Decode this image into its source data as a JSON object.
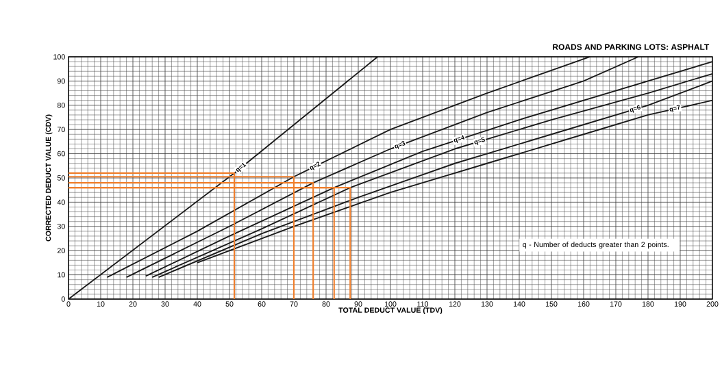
{
  "chart_data": {
    "type": "line",
    "title": "ROADS AND PARKING LOTS:  ASPHALT",
    "xlabel": "TOTAL DEDUCT VALUE (TDV)",
    "ylabel": "CORRECTED DEDUCT VALUE (CDV)",
    "xlim": [
      0,
      200
    ],
    "ylim": [
      0,
      100
    ],
    "xticks": [
      0,
      10,
      20,
      30,
      40,
      50,
      60,
      70,
      80,
      90,
      100,
      110,
      120,
      130,
      140,
      150,
      160,
      170,
      180,
      190,
      200
    ],
    "yticks": [
      0,
      10,
      20,
      30,
      40,
      50,
      60,
      70,
      80,
      90,
      100
    ],
    "grid": true,
    "legend": false,
    "marker": "none",
    "line_style": "solid",
    "annotations": [
      "q - Number of deducts greater than 2 points."
    ],
    "series": [
      {
        "name": "q=1",
        "color": "#1a1a1a",
        "x": [
          0,
          51.5,
          96
        ],
        "values": [
          0,
          52,
          100
        ]
      },
      {
        "name": "q=2",
        "color": "#1a1a1a",
        "x": [
          12,
          40,
          70,
          100,
          130,
          162
        ],
        "values": [
          9,
          28,
          50.5,
          70,
          85,
          100
        ]
      },
      {
        "name": "q=3",
        "color": "#1a1a1a",
        "x": [
          18,
          50,
          76,
          100,
          130,
          160,
          177
        ],
        "values": [
          9,
          30,
          48,
          62,
          77,
          90,
          100
        ]
      },
      {
        "name": "q=4",
        "color": "#1a1a1a",
        "x": [
          24,
          50,
          82.5,
          110,
          140,
          170,
          200
        ],
        "values": [
          9.5,
          26,
          46,
          61,
          74,
          86,
          98
        ]
      },
      {
        "name": "q=5",
        "color": "#1a1a1a",
        "x": [
          26,
          60,
          87.5,
          120,
          150,
          180,
          200
        ],
        "values": [
          9,
          29,
          46,
          62,
          74,
          85,
          93
        ]
      },
      {
        "name": "q=6",
        "color": "#1a1a1a",
        "x": [
          28,
          60,
          90,
          120,
          150,
          180,
          200
        ],
        "values": [
          9,
          27,
          42,
          56,
          68,
          80,
          90
        ]
      },
      {
        "name": "q=7",
        "color": "#1a1a1a",
        "x": [
          40,
          70,
          100,
          130,
          160,
          180,
          200
        ],
        "values": [
          15,
          30,
          44,
          56,
          68,
          76,
          82
        ]
      },
      {
        "color": "#f07f2c",
        "x": [
          0,
          51.5,
          51.5
        ],
        "values": [
          52,
          52,
          0
        ]
      },
      {
        "color": "#f07f2c",
        "x": [
          0,
          70,
          70
        ],
        "values": [
          50.5,
          50.5,
          0
        ]
      },
      {
        "color": "#f07f2c",
        "x": [
          0,
          76,
          76
        ],
        "values": [
          48,
          48,
          0
        ]
      },
      {
        "color": "#f07f2c",
        "x": [
          0,
          82.5,
          82.5
        ],
        "values": [
          46,
          46,
          0
        ]
      },
      {
        "color": "#f07f2c",
        "x": [
          0,
          87.5,
          87.5
        ],
        "values": [
          46,
          46,
          0
        ]
      }
    ]
  }
}
